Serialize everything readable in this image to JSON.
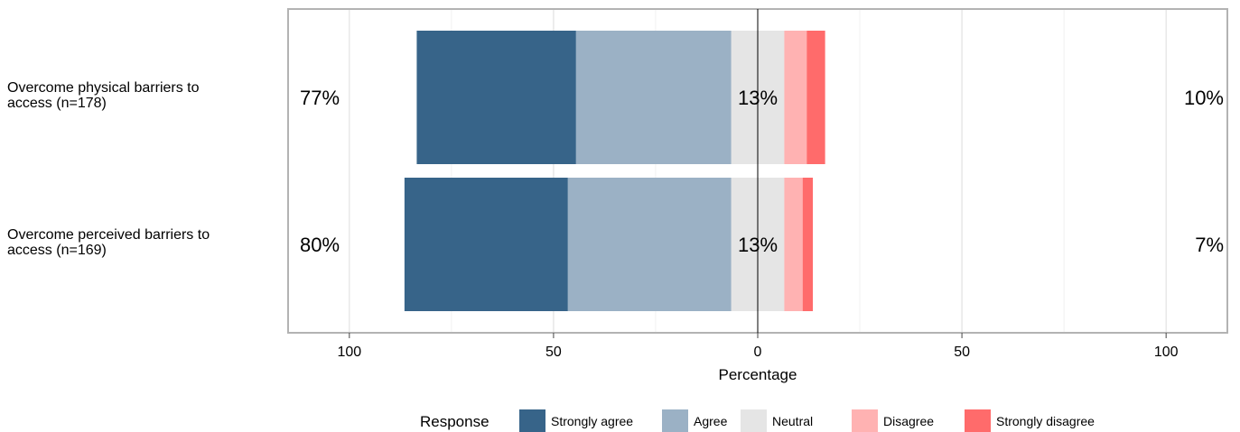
{
  "chart_data": {
    "type": "bar",
    "orientation": "horizontal",
    "stacking": "diverging",
    "xlabel": "Percentage",
    "xlim": [
      -115,
      115
    ],
    "x_ticks": [
      -100,
      -50,
      0,
      50,
      100
    ],
    "x_tick_labels": [
      "100",
      "50",
      "0",
      "50",
      "100"
    ],
    "grid": true,
    "legend_position": "bottom",
    "legend_title": "Response",
    "categories": [
      "Overcome physical barriers to access (n=178)",
      "Overcome perceived barriers to access (n=169)"
    ],
    "category_label_lines": [
      [
        "Overcome physical barriers to",
        "access (n=178)"
      ],
      [
        "Overcome perceived barriers to",
        "access (n=169)"
      ]
    ],
    "series": [
      {
        "name": "Strongly agree",
        "color": "#376489",
        "values": [
          39,
          40
        ]
      },
      {
        "name": "Agree",
        "color": "#9BB1C5",
        "values": [
          38,
          40
        ]
      },
      {
        "name": "Neutral",
        "color": "#E5E5E5",
        "values": [
          13,
          13
        ]
      },
      {
        "name": "Disagree",
        "color": "#FFB2B2",
        "values": [
          5.5,
          4.5
        ]
      },
      {
        "name": "Strongly disagree",
        "color": "#FF6B6B",
        "values": [
          4.5,
          2.5
        ]
      }
    ],
    "summary_labels": {
      "agree": [
        "77%",
        "80%"
      ],
      "neutral": [
        "13%",
        "13%"
      ],
      "disagree": [
        "10%",
        "7%"
      ]
    }
  }
}
